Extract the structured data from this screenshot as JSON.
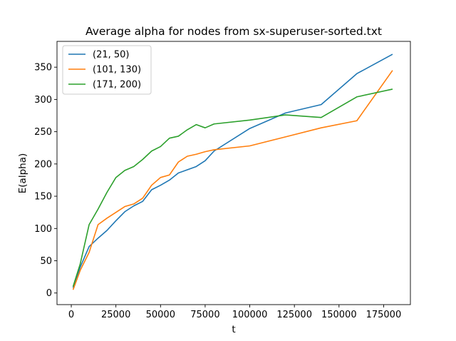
{
  "chart_data": {
    "type": "line",
    "title": "Average alpha for nodes from sx-superuser-sorted.txt",
    "xlabel": "t",
    "ylabel": "E(alpha)",
    "xlim": [
      -8000,
      190000
    ],
    "ylim": [
      -18,
      390
    ],
    "xticks": [
      0,
      25000,
      50000,
      75000,
      100000,
      125000,
      150000,
      175000
    ],
    "yticks": [
      0,
      50,
      100,
      150,
      200,
      250,
      300,
      350
    ],
    "grid": false,
    "legend_position": "top-left",
    "series": [
      {
        "name": "(21, 50)",
        "color": "#1f77b4",
        "x": [
          1000,
          5000,
          10000,
          15000,
          20000,
          25000,
          30000,
          35000,
          40000,
          45000,
          50000,
          55000,
          60000,
          65000,
          70000,
          75000,
          80000,
          100000,
          120000,
          140000,
          160000,
          180000
        ],
        "y": [
          8,
          40,
          72,
          85,
          97,
          112,
          126,
          135,
          142,
          160,
          167,
          175,
          186,
          191,
          196,
          205,
          220,
          255,
          279,
          292,
          340,
          370
        ]
      },
      {
        "name": "(101, 130)",
        "color": "#ff7f0e",
        "x": [
          1000,
          5000,
          10000,
          15000,
          20000,
          25000,
          30000,
          35000,
          40000,
          45000,
          50000,
          55000,
          60000,
          65000,
          70000,
          75000,
          80000,
          100000,
          120000,
          140000,
          160000,
          180000
        ],
        "y": [
          5,
          35,
          63,
          106,
          116,
          125,
          134,
          138,
          147,
          167,
          179,
          183,
          203,
          212,
          215,
          219,
          222,
          228,
          242,
          256,
          267,
          345
        ]
      },
      {
        "name": "(171, 200)",
        "color": "#2ca02c",
        "x": [
          1000,
          5000,
          10000,
          15000,
          20000,
          25000,
          30000,
          35000,
          40000,
          45000,
          50000,
          55000,
          60000,
          65000,
          70000,
          75000,
          80000,
          100000,
          120000,
          140000,
          160000,
          180000
        ],
        "y": [
          10,
          45,
          106,
          130,
          156,
          179,
          190,
          196,
          207,
          220,
          227,
          240,
          243,
          253,
          261,
          256,
          262,
          268,
          276,
          272,
          304,
          316
        ]
      }
    ]
  }
}
